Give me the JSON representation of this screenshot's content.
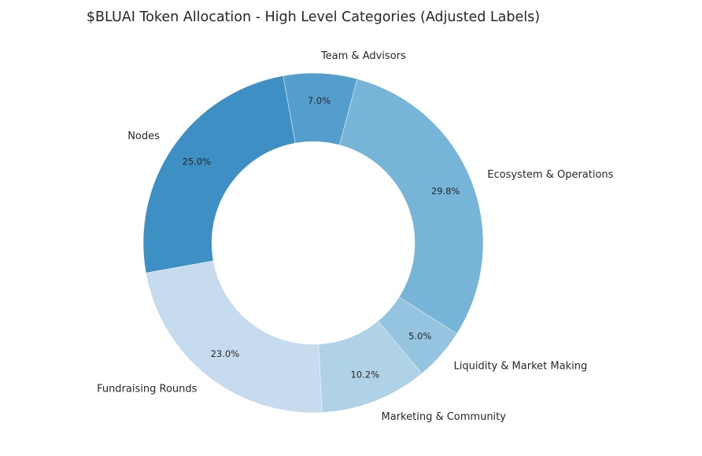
{
  "chart_data": {
    "type": "pie",
    "donut": true,
    "title": "$BLUAI Token Allocation - High Level Categories (Adjusted Labels)",
    "slices": [
      {
        "label": "Team & Advisors",
        "value": 7.0,
        "pct_label": "7.0%",
        "color": "#539ecd"
      },
      {
        "label": "Nodes",
        "value": 25.0,
        "pct_label": "25.0%",
        "color": "#3d8fc4"
      },
      {
        "label": "Fundraising Rounds",
        "value": 23.0,
        "pct_label": "23.0%",
        "color": "#c6dcee"
      },
      {
        "label": "Marketing & Community",
        "value": 10.2,
        "pct_label": "10.2%",
        "color": "#b0d2e7"
      },
      {
        "label": "Liquidity & Market Making",
        "value": 5.0,
        "pct_label": "5.0%",
        "color": "#94c4df"
      },
      {
        "label": "Ecosystem & Operations",
        "value": 29.8,
        "pct_label": "29.8%",
        "color": "#77b5d8"
      }
    ],
    "start_angle": 75,
    "direction": "counterclockwise",
    "legend": "none"
  }
}
